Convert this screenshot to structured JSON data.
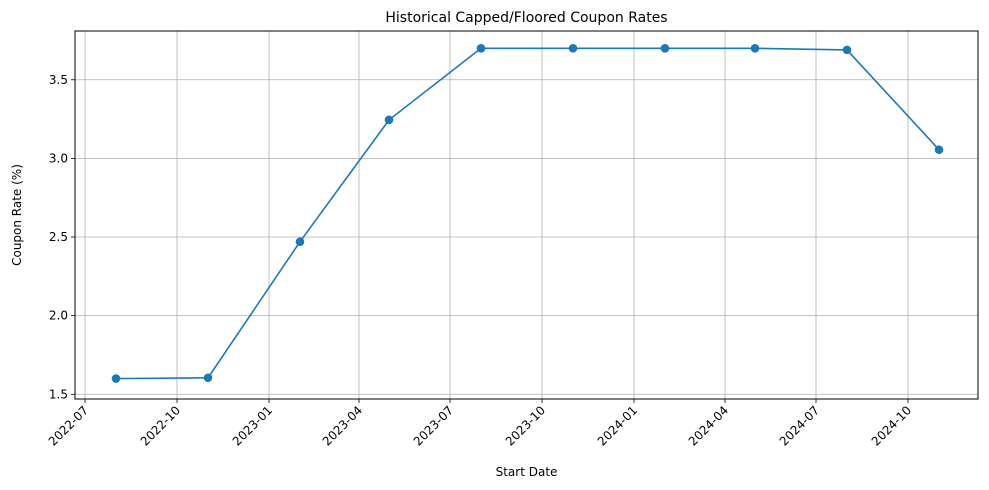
{
  "chart_data": {
    "type": "line",
    "title": "Historical Capped/Floored Coupon Rates",
    "xlabel": "Start Date",
    "ylabel": "Coupon Rate (%)",
    "x_axis_type": "date",
    "xlim": [
      "2022-06-21",
      "2024-12-10"
    ],
    "ylim": [
      1.47,
      3.81
    ],
    "grid": true,
    "x_ticks": [
      "2022-07",
      "2022-10",
      "2023-01",
      "2023-04",
      "2023-07",
      "2023-10",
      "2024-01",
      "2024-04",
      "2024-07",
      "2024-10"
    ],
    "y_ticks": [
      "1.5",
      "2.0",
      "2.5",
      "3.0",
      "3.5"
    ],
    "series": [
      {
        "color": "#1f77b4",
        "marker": "circle",
        "x": [
          "2022-08-01",
          "2022-11-01",
          "2023-02-01",
          "2023-05-01",
          "2023-08-01",
          "2023-11-01",
          "2024-02-01",
          "2024-05-01",
          "2024-08-01",
          "2024-11-01"
        ],
        "y": [
          1.6,
          1.605,
          2.47,
          3.245,
          3.7,
          3.7,
          3.7,
          3.7,
          3.69,
          3.055
        ]
      }
    ]
  }
}
